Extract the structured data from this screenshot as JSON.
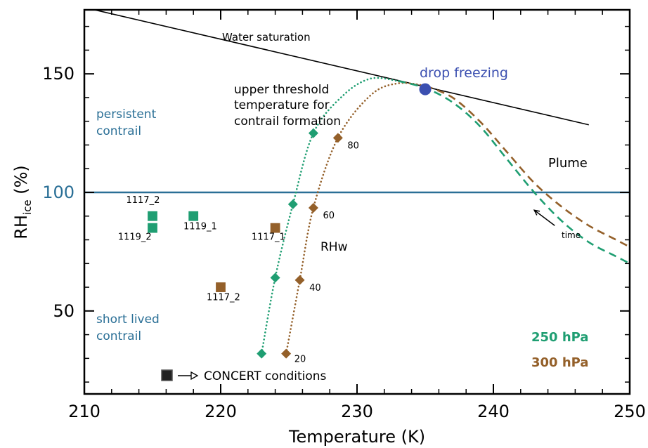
{
  "chart_data": {
    "type": "scatter",
    "xlabel": "Temperature (K)",
    "ylabel_main": "RH",
    "ylabel_sub": "ice",
    "ylabel_unit": " (%)",
    "xlim": [
      210,
      250
    ],
    "ylim": [
      15,
      177
    ],
    "x_ticks": [
      210,
      220,
      230,
      240,
      250
    ],
    "y_ticks": [
      50,
      100,
      150
    ],
    "colors": {
      "green": "#1f9e72",
      "brown": "#94602a",
      "blue_text": "#2a6f96",
      "hline": "#2a6f96",
      "drop": "#3b4fb0",
      "black": "#000000"
    },
    "water_saturation": {
      "label": "Water saturation",
      "points": [
        [
          210,
          178
        ],
        [
          247,
          128.5
        ]
      ]
    },
    "rh100_line": 100,
    "drop_freezing": {
      "label": "drop freezing",
      "x": 235,
      "y": 143.5
    },
    "threshold_text": [
      "upper threshold",
      "temperature for",
      "contrail formation"
    ],
    "threshold_green": {
      "points": [
        [
          223,
          32
        ],
        [
          224,
          64
        ],
        [
          225.3,
          95
        ],
        [
          226.8,
          125
        ],
        [
          229,
          141
        ],
        [
          231,
          148
        ],
        [
          233,
          147
        ]
      ],
      "markers": [
        [
          223,
          32
        ],
        [
          224,
          64
        ],
        [
          225.3,
          95
        ],
        [
          226.8,
          125
        ]
      ]
    },
    "threshold_brown": {
      "points": [
        [
          224.8,
          32
        ],
        [
          225.8,
          63
        ],
        [
          226.8,
          93.5
        ],
        [
          228.6,
          123
        ],
        [
          231,
          141
        ],
        [
          233,
          146
        ],
        [
          235,
          145
        ]
      ],
      "markers": [
        [
          224.8,
          32
        ],
        [
          225.8,
          63
        ],
        [
          226.8,
          93.5
        ],
        [
          228.6,
          123
        ]
      ],
      "labels": [
        {
          "x": 225.4,
          "y": 28.5,
          "text": "20"
        },
        {
          "x": 226.5,
          "y": 58.5,
          "text": "40"
        },
        {
          "x": 227.5,
          "y": 89,
          "text": "60"
        },
        {
          "x": 229.3,
          "y": 118.5,
          "text": "80"
        }
      ]
    },
    "rhw_label": {
      "text": "RHw",
      "x": 227.5,
      "y": 74
    },
    "plume_green": {
      "points": [
        [
          233,
          147
        ],
        [
          235,
          144
        ],
        [
          237,
          138
        ],
        [
          239,
          128
        ],
        [
          241,
          114
        ],
        [
          243,
          100
        ],
        [
          245,
          88
        ],
        [
          247,
          79
        ],
        [
          249,
          73
        ],
        [
          250,
          70
        ]
      ]
    },
    "plume_brown": {
      "points": [
        [
          235,
          145
        ],
        [
          237,
          140
        ],
        [
          239,
          130
        ],
        [
          241,
          117
        ],
        [
          243,
          104
        ],
        [
          245,
          94
        ],
        [
          247,
          86
        ],
        [
          249,
          80
        ],
        [
          250,
          77
        ]
      ]
    },
    "plume_label": {
      "text": "Plume",
      "x": 243.5,
      "y": 112
    },
    "time_label": {
      "text": "time",
      "x": 244.3,
      "y": 80
    },
    "time_arrow": [
      [
        244.5,
        86
      ],
      [
        243,
        92.5
      ]
    ],
    "persistent_label": [
      "persistent",
      "contrail"
    ],
    "short_lived_label": [
      "short lived",
      "contrail"
    ],
    "concert_squares": [
      {
        "x": 215,
        "y": 90,
        "series": "250 hPa",
        "label": "1117_2",
        "lx": 214.3,
        "ly": 95.5
      },
      {
        "x": 215,
        "y": 85,
        "series": "250 hPa",
        "label": "1119_2",
        "lx": 213.7,
        "ly": 80
      },
      {
        "x": 218,
        "y": 90,
        "series": "250 hPa",
        "label": "1119_1",
        "lx": 218.5,
        "ly": 84.5
      },
      {
        "x": 224,
        "y": 85,
        "series": "300 hPa",
        "label": "1117_1",
        "lx": 223.5,
        "ly": 80
      },
      {
        "x": 220,
        "y": 60,
        "series": "300 hPa",
        "label": "1117_2",
        "lx": 220.2,
        "ly": 54.5
      }
    ],
    "legend_250": "250 hPa",
    "legend_300": "300 hPa",
    "concert_legend": "CONCERT conditions"
  }
}
